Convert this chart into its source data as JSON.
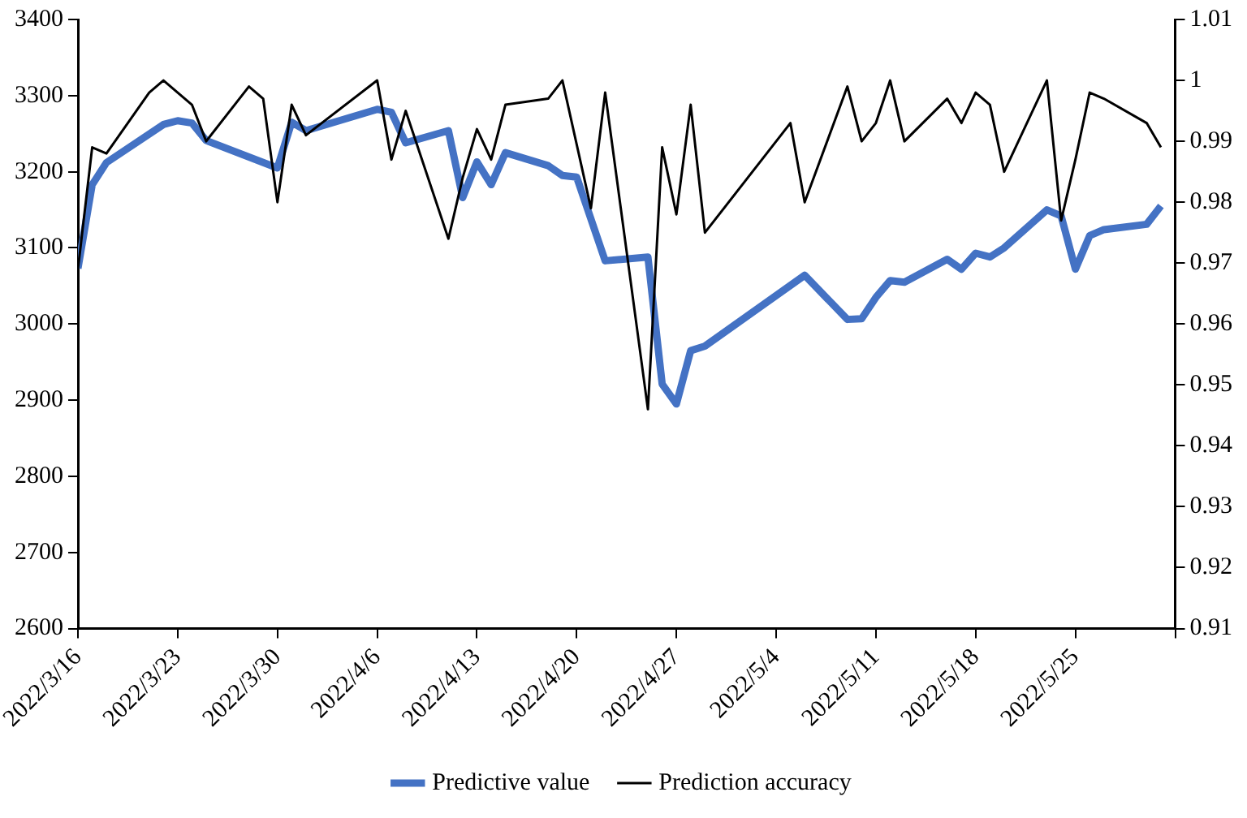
{
  "chart_data": {
    "type": "line",
    "marker": "none",
    "line_style": "solid",
    "grid": false,
    "legend": "bottom",
    "xlim": [
      "2022-03-16",
      "2022-06-01"
    ],
    "xticks": [
      {
        "value": "2022-03-16",
        "label": "2022/3/16"
      },
      {
        "value": "2022-03-23",
        "label": "2022/3/23"
      },
      {
        "value": "2022-03-30",
        "label": "2022/3/30"
      },
      {
        "value": "2022-04-06",
        "label": "2022/4/6"
      },
      {
        "value": "2022-04-13",
        "label": "2022/4/13"
      },
      {
        "value": "2022-04-20",
        "label": "2022/4/20"
      },
      {
        "value": "2022-04-27",
        "label": "2022/4/27"
      },
      {
        "value": "2022-05-04",
        "label": "2022/5/4"
      },
      {
        "value": "2022-05-11",
        "label": "2022/5/11"
      },
      {
        "value": "2022-05-18",
        "label": "2022/5/18"
      },
      {
        "value": "2022-05-25",
        "label": "2022/5/25"
      },
      {
        "value": "2022-06-01",
        "label": null
      }
    ],
    "ylim": [
      2600,
      3400
    ],
    "yticks": [
      2600,
      2700,
      2800,
      2900,
      3000,
      3100,
      3200,
      3300,
      3400
    ],
    "y2lim": [
      0.91,
      1.01
    ],
    "y2ticks": [
      0.91,
      0.92,
      0.93,
      0.94,
      0.95,
      0.96,
      0.97,
      0.98,
      0.99,
      1,
      1.01
    ],
    "series": [
      {
        "name": "Predictive value",
        "color": "#4472c4",
        "x": [
          "2022-03-16",
          "2022-03-17",
          "2022-03-18",
          "2022-03-22",
          "2022-03-23",
          "2022-03-24",
          "2022-03-25",
          "2022-03-30",
          "2022-03-31",
          "2022-04-01",
          "2022-04-06",
          "2022-04-07",
          "2022-04-08",
          "2022-04-11",
          "2022-04-12",
          "2022-04-13",
          "2022-04-14",
          "2022-04-15",
          "2022-04-18",
          "2022-04-19",
          "2022-04-20",
          "2022-04-22",
          "2022-04-25",
          "2022-04-26",
          "2022-04-27",
          "2022-04-28",
          "2022-04-29",
          "2022-05-06",
          "2022-05-09",
          "2022-05-10",
          "2022-05-11",
          "2022-05-12",
          "2022-05-13",
          "2022-05-16",
          "2022-05-17",
          "2022-05-18",
          "2022-05-19",
          "2022-05-20",
          "2022-05-23",
          "2022-05-24",
          "2022-05-25",
          "2022-05-26",
          "2022-05-27",
          "2022-05-30",
          "2022-05-31"
        ],
        "values": [
          3073,
          3183,
          3212,
          3262,
          3267,
          3264,
          3241,
          3205,
          3265,
          3254,
          3282,
          3278,
          3238,
          3254,
          3166,
          3213,
          3183,
          3225,
          3208,
          3195,
          3193,
          3083,
          3088,
          2921,
          2895,
          2965,
          2971,
          3064,
          3006,
          3007,
          3035,
          3057,
          3055,
          3085,
          3072,
          3093,
          3088,
          3100,
          3150,
          3142,
          3072,
          3116,
          3124,
          3131,
          3155
        ]
      },
      {
        "name": "Prediction accuracy",
        "color": "#000000",
        "axis": "y2",
        "x": [
          "2022-03-16",
          "2022-03-17",
          "2022-03-18",
          "2022-03-21",
          "2022-03-22",
          "2022-03-23",
          "2022-03-24",
          "2022-03-25",
          "2022-03-28",
          "2022-03-29",
          "2022-03-30",
          "2022-03-31",
          "2022-04-01",
          "2022-04-06",
          "2022-04-07",
          "2022-04-08",
          "2022-04-11",
          "2022-04-12",
          "2022-04-13",
          "2022-04-14",
          "2022-04-15",
          "2022-04-18",
          "2022-04-19",
          "2022-04-21",
          "2022-04-22",
          "2022-04-25",
          "2022-04-26",
          "2022-04-27",
          "2022-04-28",
          "2022-04-29",
          "2022-05-05",
          "2022-05-06",
          "2022-05-09",
          "2022-05-10",
          "2022-05-11",
          "2022-05-12",
          "2022-05-13",
          "2022-05-16",
          "2022-05-17",
          "2022-05-18",
          "2022-05-19",
          "2022-05-20",
          "2022-05-23",
          "2022-05-24",
          "2022-05-25",
          "2022-05-26",
          "2022-05-27",
          "2022-05-30",
          "2022-05-31"
        ],
        "values": [
          0.969,
          0.989,
          0.988,
          0.998,
          1.0,
          0.998,
          0.996,
          0.99,
          0.999,
          0.997,
          0.98,
          0.996,
          0.991,
          1.0,
          0.987,
          0.995,
          0.974,
          0.984,
          0.992,
          0.987,
          0.996,
          0.997,
          1.0,
          0.979,
          0.998,
          0.946,
          0.989,
          0.978,
          0.996,
          0.975,
          0.993,
          0.98,
          0.999,
          0.99,
          0.993,
          1.0,
          0.99,
          0.997,
          0.993,
          0.998,
          0.996,
          0.985,
          1.0,
          0.977,
          0.987,
          0.998,
          0.997,
          0.993,
          0.989
        ]
      }
    ]
  }
}
